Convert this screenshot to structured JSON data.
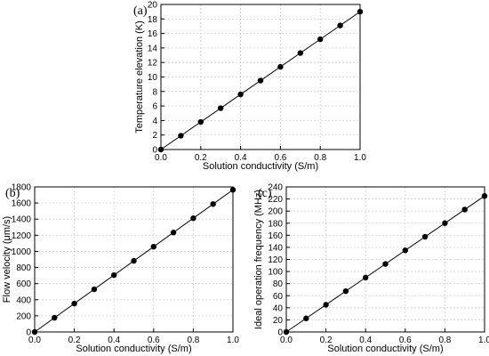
{
  "chart_data": [
    {
      "type": "scatter",
      "panel_label": "(a)",
      "xlabel": "Solution conductivity (S/m)",
      "ylabel": "Temperature elevation (K)",
      "xlim": [
        0,
        1.0
      ],
      "ylim": [
        0,
        20
      ],
      "x_ticks": [
        "0.0",
        "0.2",
        "0.4",
        "0.6",
        "0.8",
        "1.0"
      ],
      "y_ticks": [
        "0",
        "2",
        "4",
        "6",
        "8",
        "10",
        "12",
        "14",
        "16",
        "18",
        "20"
      ],
      "grid": true,
      "fit_line": true,
      "series": [
        {
          "x": [
            0,
            0.1,
            0.2,
            0.3,
            0.4,
            0.5,
            0.6,
            0.7,
            0.8,
            0.9,
            1.0
          ],
          "values": [
            0,
            1.9,
            3.8,
            5.7,
            7.6,
            9.5,
            11.4,
            13.3,
            15.2,
            17.1,
            19.0
          ]
        }
      ]
    },
    {
      "type": "scatter",
      "panel_label": "(b)",
      "xlabel": "Solution conductivity (S/m)",
      "ylabel": "Flow velocity (μm/s)",
      "xlim": [
        0,
        1.0
      ],
      "ylim": [
        0,
        1800
      ],
      "x_ticks": [
        "0.0",
        "0.2",
        "0.4",
        "0.6",
        "0.8",
        "1.0"
      ],
      "y_ticks": [
        "0",
        "200",
        "400",
        "600",
        "800",
        "1000",
        "1200",
        "1400",
        "1600",
        "1800"
      ],
      "grid": true,
      "fit_line": true,
      "series": [
        {
          "x": [
            0,
            0.1,
            0.2,
            0.3,
            0.4,
            0.5,
            0.6,
            0.7,
            0.8,
            0.9,
            1.0
          ],
          "values": [
            0,
            176,
            352,
            529,
            705,
            882,
            1058,
            1234,
            1411,
            1587,
            1764
          ]
        }
      ]
    },
    {
      "type": "scatter",
      "panel_label": "(c)",
      "xlabel": "Solution conductivity (S/m)",
      "ylabel": "Ideal operation frequency (MHz)",
      "xlim": [
        0,
        1.0
      ],
      "ylim": [
        0,
        240
      ],
      "x_ticks": [
        "0.0",
        "0.2",
        "0.4",
        "0.6",
        "0.8",
        "1.0"
      ],
      "y_ticks": [
        "0",
        "20",
        "40",
        "60",
        "80",
        "100",
        "120",
        "140",
        "160",
        "180",
        "200",
        "220",
        "240"
      ],
      "grid": true,
      "fit_line": true,
      "series": [
        {
          "x": [
            0,
            0.1,
            0.2,
            0.3,
            0.4,
            0.5,
            0.6,
            0.7,
            0.8,
            0.9,
            1.0
          ],
          "values": [
            0,
            22.5,
            45,
            67.5,
            90,
            112.5,
            135,
            157.5,
            180,
            202.5,
            225
          ]
        }
      ]
    }
  ]
}
